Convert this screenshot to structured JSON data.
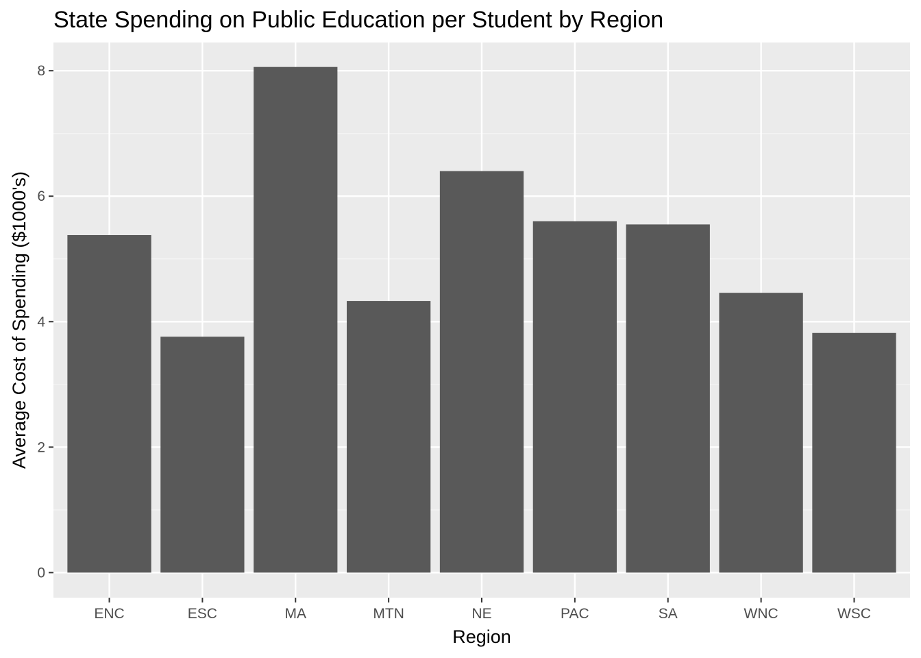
{
  "chart_data": {
    "type": "bar",
    "title": "State Spending on Public Education per Student by Region",
    "xlabel": "Region",
    "ylabel": "Average Cost of Spending ($1000's)",
    "categories": [
      "ENC",
      "ESC",
      "MA",
      "MTN",
      "NE",
      "PAC",
      "SA",
      "WNC",
      "WSC"
    ],
    "values": [
      5.38,
      3.76,
      8.06,
      4.33,
      6.4,
      5.6,
      5.55,
      4.46,
      3.82
    ],
    "ylim": [
      -0.4,
      8.45
    ],
    "yticks": [
      0,
      2,
      4,
      6,
      8
    ],
    "ytick_labels": [
      "0",
      "2",
      "4",
      "6",
      "8"
    ],
    "grid": true,
    "legend": "none",
    "colors": {
      "bar": "#595959",
      "panel": "#ebebeb",
      "grid_major": "#ffffff",
      "grid_minor": "#f5f5f5",
      "tick": "#333333",
      "tick_label": "#4d4d4d"
    }
  }
}
